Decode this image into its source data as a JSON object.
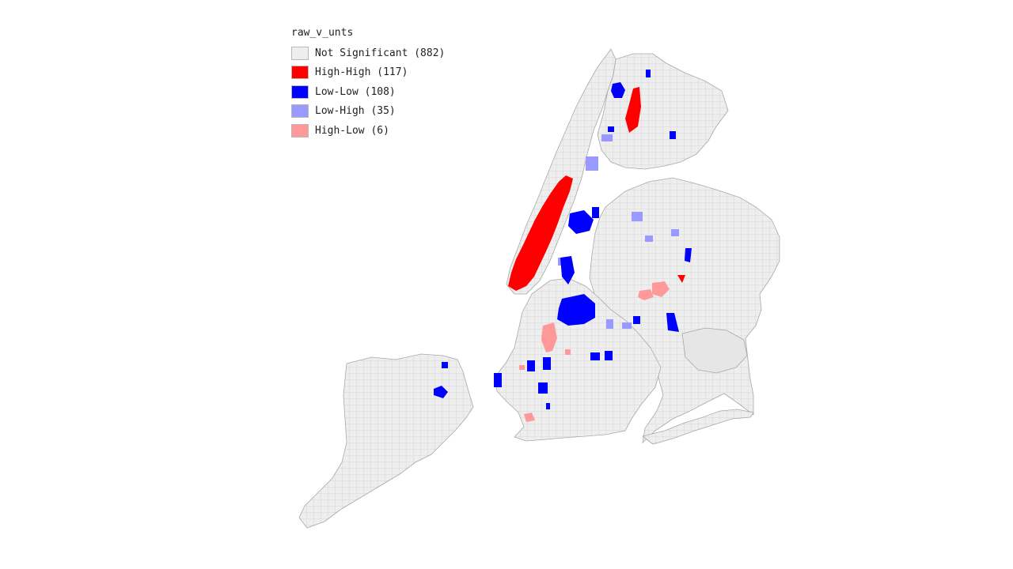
{
  "legend": {
    "title": "raw_v_unts",
    "items": [
      {
        "label": "Not Significant (882)",
        "color": "#eeeeee",
        "category": "not-significant"
      },
      {
        "label": "High-High (117)",
        "color": "#ff0000",
        "category": "high-high"
      },
      {
        "label": "Low-Low (108)",
        "color": "#0000ff",
        "category": "low-low"
      },
      {
        "label": "Low-High (35)",
        "color": "#9999ff",
        "category": "low-high"
      },
      {
        "label": "High-Low (6)",
        "color": "#ff9999",
        "category": "high-low"
      }
    ]
  },
  "map": {
    "boundary_color": "#a8a8a8",
    "base_fill": "#eeeeee"
  }
}
